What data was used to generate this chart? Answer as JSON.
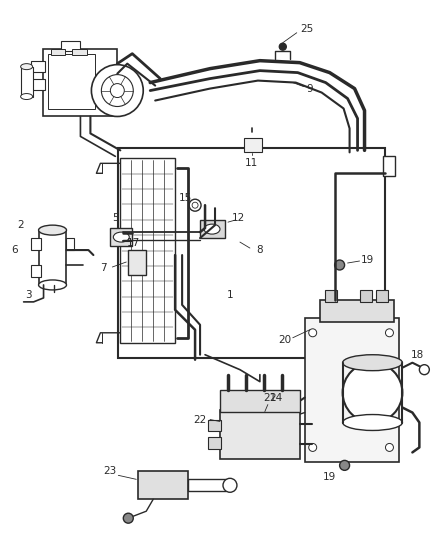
{
  "background_color": "#ffffff",
  "line_color": "#2a2a2a",
  "figsize": [
    4.38,
    5.33
  ],
  "dpi": 100,
  "label_fontsize": 7.5,
  "label_fontsize_sm": 7.0
}
